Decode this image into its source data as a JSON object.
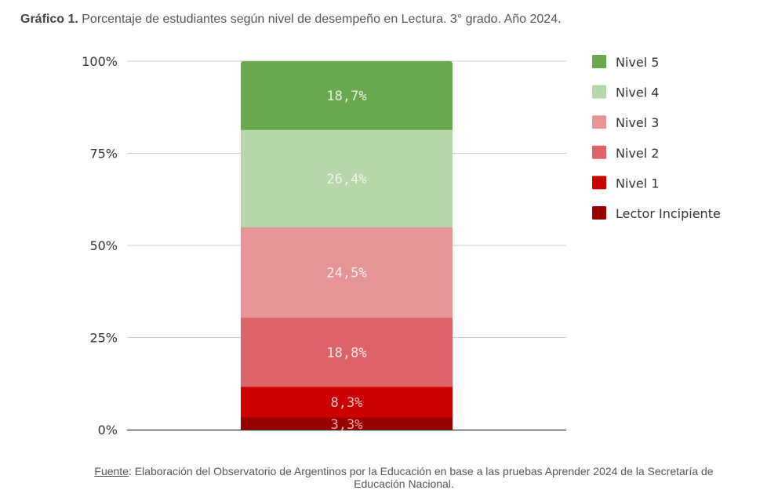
{
  "title": {
    "prefix": "Gráfico 1.",
    "text": " Porcentaje de estudiantes según nivel de desempeño en Lectura. 3° grado.  Año 2024."
  },
  "source": {
    "key": "Fuente",
    "text": ": Elaboración del Observatorio de Argentinos por la Educación en base a las pruebas Aprender 2024 de la Secretaría de",
    "text2": "Educación Nacional."
  },
  "chart_data": {
    "type": "bar",
    "stacked": true,
    "title": "Porcentaje de estudiantes según nivel de desempeño en Lectura. 3° grado. Año 2024.",
    "xlabel": "",
    "ylabel": "",
    "categories": [
      ""
    ],
    "ylim": [
      0,
      100
    ],
    "yticks": [
      0,
      25,
      50,
      75,
      100
    ],
    "ytick_labels": [
      "0%",
      "25%",
      "50%",
      "75%",
      "100%"
    ],
    "grid": true,
    "legend_position": "right",
    "series": [
      {
        "name": "Lector Incipiente",
        "values": [
          3.3
        ],
        "label": "3,3%",
        "color": "#990000",
        "label_color": "#f4a8a8"
      },
      {
        "name": "Nivel 1",
        "values": [
          8.3
        ],
        "label": "8,3%",
        "color": "#cc0000",
        "label_color": "#f8c8c8"
      },
      {
        "name": "Nivel 2",
        "values": [
          18.8
        ],
        "label": "18,8%",
        "color": "#dd6466",
        "label_color": "#fbe3e3"
      },
      {
        "name": "Nivel 3",
        "values": [
          24.5
        ],
        "label": "24,5%",
        "color": "#e69495",
        "label_color": "#fbeeee"
      },
      {
        "name": "Nivel 4",
        "values": [
          26.4
        ],
        "label": "26,4%",
        "color": "#b6d7a8",
        "label_color": "#f0f8ec"
      },
      {
        "name": "Nivel 5",
        "values": [
          18.7
        ],
        "label": "18,7%",
        "color": "#6aa84f",
        "label_color": "#e8f4e2"
      }
    ],
    "legend_order": [
      "Nivel 5",
      "Nivel 4",
      "Nivel 3",
      "Nivel 2",
      "Nivel 1",
      "Lector Incipiente"
    ]
  }
}
